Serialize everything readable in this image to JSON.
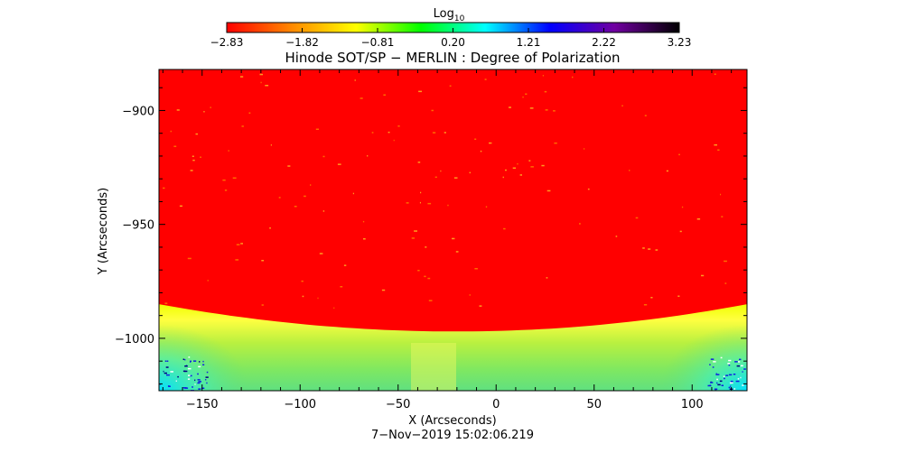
{
  "chart_data": {
    "type": "heatmap",
    "title": "Hinode SOT/SP − MERLIN : Degree of Polarization",
    "xlabel": "X (Arcseconds)",
    "ylabel": "Y (Arcseconds)",
    "timestamp": "7−Nov−2019 15:02:06.219",
    "xlim": [
      -172,
      128
    ],
    "ylim": [
      -1023,
      -882
    ],
    "xticks": [
      -150,
      -100,
      -50,
      0,
      50,
      100
    ],
    "xtick_labels": [
      "−150",
      "−100",
      "−50",
      "0",
      "50",
      "100"
    ],
    "yticks": [
      -900,
      -950,
      -1000
    ],
    "ytick_labels": [
      "−900",
      "−950",
      "−1000"
    ],
    "limb": {
      "y_center": -997,
      "x_center": -20,
      "y_edge_left": -985,
      "y_edge_right": -985
    },
    "colorbar": {
      "title_base": "Log",
      "title_sub": "10",
      "range": [
        -2.83,
        3.23
      ],
      "tick_labels": [
        "−2.83",
        "−1.82",
        "−0.81",
        "0.20",
        "1.21",
        "2.22",
        "3.23"
      ],
      "colors": [
        "#ff0000",
        "#ff8800",
        "#ffff00",
        "#00ff00",
        "#00ffff",
        "#0000ff",
        "#7000a0",
        "#000000"
      ]
    },
    "grid": false,
    "legend": "colorbar-top"
  }
}
